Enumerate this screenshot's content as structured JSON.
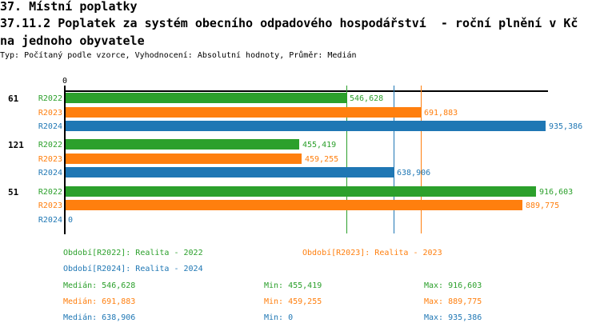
{
  "header": {
    "title_line1": "37. Místní poplatky",
    "title_line2": "37.11.2 Poplatek za systém obecního odpadového hospodářství  - roční plnění v Kč",
    "title_line3": "na jednoho obyvatele",
    "meta": "Typ: Počítaný podle vzorce, Vyhodnocení: Absolutní hodnoty, Průměr: Medián"
  },
  "colors": {
    "R2022": "#2ca02c",
    "R2023": "#ff7f0e",
    "R2024": "#1f77b4",
    "axis": "#000000"
  },
  "chart_data": {
    "type": "bar",
    "orientation": "horizontal",
    "unit": "Kč na jednoho obyvatele",
    "axis_zero_label": "0",
    "value_axis_max": 935386,
    "grid": "median-lines-only",
    "legend_position": "bottom",
    "categories": [
      "61",
      "121",
      "51"
    ],
    "series": [
      {
        "name": "R2022",
        "values": [
          546628,
          455419,
          916603
        ]
      },
      {
        "name": "R2023",
        "values": [
          691883,
          459255,
          889775
        ]
      },
      {
        "name": "R2024",
        "values": [
          935386,
          638906,
          0
        ]
      }
    ],
    "groups": [
      {
        "label": "61",
        "bars": [
          {
            "series": "R2022",
            "value": 546628,
            "display": "546,628"
          },
          {
            "series": "R2023",
            "value": 691883,
            "display": "691,883"
          },
          {
            "series": "R2024",
            "value": 935386,
            "display": "935,386"
          }
        ]
      },
      {
        "label": "121",
        "bars": [
          {
            "series": "R2022",
            "value": 455419,
            "display": "455,419"
          },
          {
            "series": "R2023",
            "value": 459255,
            "display": "459,255"
          },
          {
            "series": "R2024",
            "value": 638906,
            "display": "638,906"
          }
        ]
      },
      {
        "label": "51",
        "bars": [
          {
            "series": "R2022",
            "value": 916603,
            "display": "916,603"
          },
          {
            "series": "R2023",
            "value": 889775,
            "display": "889,775"
          },
          {
            "series": "R2024",
            "value": 0,
            "display": "0"
          }
        ]
      }
    ],
    "median_lines": [
      {
        "series": "R2022",
        "value": 546628
      },
      {
        "series": "R2023",
        "value": 691883
      },
      {
        "series": "R2024",
        "value": 638906
      }
    ],
    "legend": [
      {
        "series": "R2022",
        "label": "Období[R2022]: Realita - 2022"
      },
      {
        "series": "R2023",
        "label": "Období[R2023]: Realita - 2023"
      },
      {
        "series": "R2024",
        "label": "Období[R2024]: Realita - 2024"
      }
    ],
    "stats": [
      {
        "series": "R2022",
        "median": "Medián: 546,628",
        "min": "Min: 455,419",
        "max": "Max: 916,603"
      },
      {
        "series": "R2023",
        "median": "Medián: 691,883",
        "min": "Min: 459,255",
        "max": "Max: 889,775"
      },
      {
        "series": "R2024",
        "median": "Medián: 638,906",
        "min": "Min: 0",
        "max": "Max: 935,386"
      }
    ]
  }
}
